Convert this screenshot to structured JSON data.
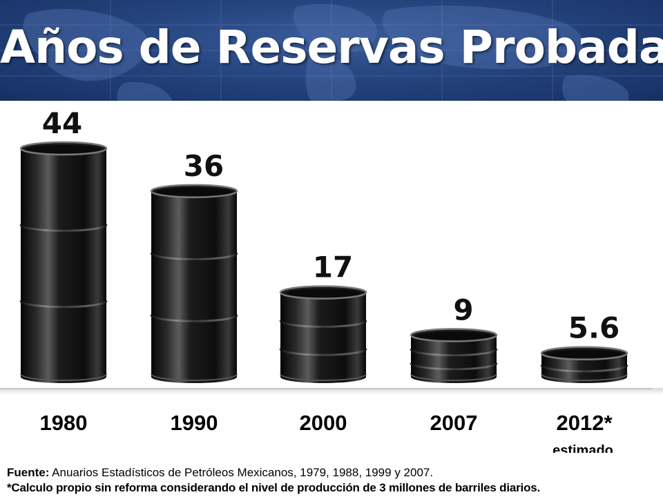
{
  "header": {
    "title": "Años de Reservas Probadas"
  },
  "chart_data": {
    "type": "bar",
    "title": "Años de Reservas Probadas",
    "categories": [
      "1980",
      "1990",
      "2000",
      "2007",
      "2012*"
    ],
    "values": [
      44,
      36,
      17,
      9,
      5.6
    ],
    "value_labels": [
      "44",
      "36",
      "17",
      "9",
      "5.6"
    ],
    "annotations": [
      "estimado"
    ],
    "xlabel": "",
    "ylabel": "",
    "ylim": [
      0,
      44
    ],
    "grid": false,
    "bar_style": "oil barrel"
  },
  "footer": {
    "source_label": "Fuente:",
    "source_text": " Anuarios Estadísticos de Petróleos Mexicanos, 1979, 1988, 1999 y 2007.",
    "footnote": "*Calculo propio sin reforma considerando el nivel de producción de 3 millones de barriles diarios."
  },
  "colors": {
    "header_bg": "#25457f",
    "title_text": "#ffffff",
    "barrel_dark": "#0c0c0c",
    "barrel_highlight": "#5a5a5a",
    "label_text": "#000000"
  }
}
